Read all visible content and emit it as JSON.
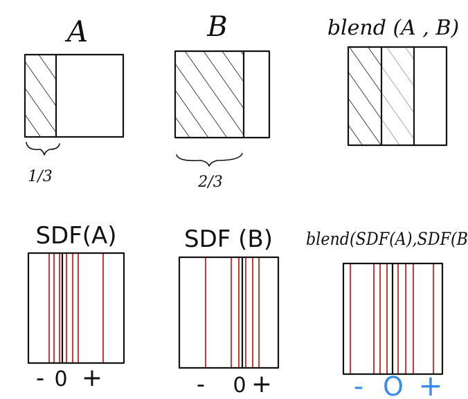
{
  "colors": {
    "ink": "#111111",
    "red_line": "#cc2222",
    "blue_ink": "#3a8ee6",
    "background": "#ffffff"
  },
  "top_row": {
    "panel_a": {
      "title": "A",
      "fraction_label": "1/3"
    },
    "panel_b": {
      "title": "B",
      "fraction_label": "2/3"
    },
    "panel_blend": {
      "title": "blend (A , B)"
    }
  },
  "bottom_row": {
    "panel_sdf_a": {
      "title": "SDF(A)",
      "axis": {
        "minus": "-",
        "zero": "0",
        "plus": "+"
      }
    },
    "panel_sdf_b": {
      "title": "SDF (B)",
      "axis": {
        "minus": "-",
        "zero": "0",
        "plus": "+"
      }
    },
    "panel_blend_sdf": {
      "title": "blend(SDF(A),SDF(B",
      "axis": {
        "minus": "-",
        "zero": "O",
        "plus": "+"
      }
    }
  }
}
